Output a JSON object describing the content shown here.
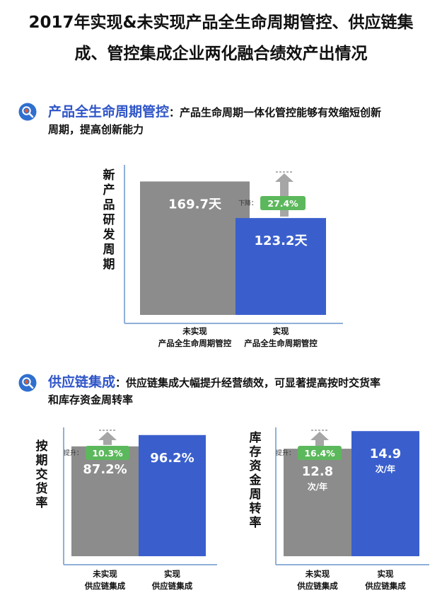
{
  "title": {
    "line1": "2017年实现&未实现产品全生命周期管控、供应链集",
    "line2": "成、管控集成企业两化融合绩效产出情况"
  },
  "sections": [
    {
      "name": "产品全生命周期管控",
      "colon": "：",
      "desc1": "产品生命周期一体化管控能够有效缩短创新",
      "desc2": "周期，提高创新能力",
      "icon": "magnifier-icon"
    },
    {
      "name": "供应链集成",
      "colon": "：",
      "desc1": "供应链集成大幅提升经营绩效，可显著提高按时交货率",
      "desc2": "和库存资金周转率",
      "icon": "magnifier-icon"
    }
  ],
  "colors": {
    "gray_bar": "#8c8c8c",
    "blue_bar": "#3a5fcd",
    "badge_green": "#5cb85c",
    "arrow_gray": "#a6a6a6",
    "axis_blue": "#8fb0d8",
    "title_blue": "#2f55c8"
  },
  "chart_data": [
    {
      "type": "bar",
      "ylabel": "新产品研发周期",
      "categories": [
        [
          "未实现",
          "产品全生命周期管控"
        ],
        [
          "实现",
          "产品全生命周期管控"
        ]
      ],
      "values": [
        169.7,
        123.2
      ],
      "value_labels": [
        [
          "169.7天"
        ],
        [
          "123.2天"
        ]
      ],
      "change": {
        "label": "下降：",
        "value": "27.4%"
      },
      "ylim": [
        0,
        180
      ]
    },
    {
      "type": "bar",
      "ylabel": "按期交货率",
      "categories": [
        [
          "未实现",
          "供应链集成"
        ],
        [
          "实现",
          "供应链集成"
        ]
      ],
      "values": [
        87.2,
        96.2
      ],
      "value_labels": [
        [
          "87.2%"
        ],
        [
          "96.2%"
        ]
      ],
      "change": {
        "label": "提升：",
        "value": "10.3%"
      },
      "ylim": [
        0,
        100
      ]
    },
    {
      "type": "bar",
      "ylabel": "库存资金周转率",
      "categories": [
        [
          "未实现",
          "供应链集成"
        ],
        [
          "实现",
          "供应链集成"
        ]
      ],
      "values": [
        12.8,
        14.9
      ],
      "value_labels": [
        [
          "12.8",
          "次/年"
        ],
        [
          "14.9",
          "次/年"
        ]
      ],
      "change": {
        "label": "提升：",
        "value": "16.4%"
      },
      "ylim": [
        0,
        15
      ]
    }
  ]
}
